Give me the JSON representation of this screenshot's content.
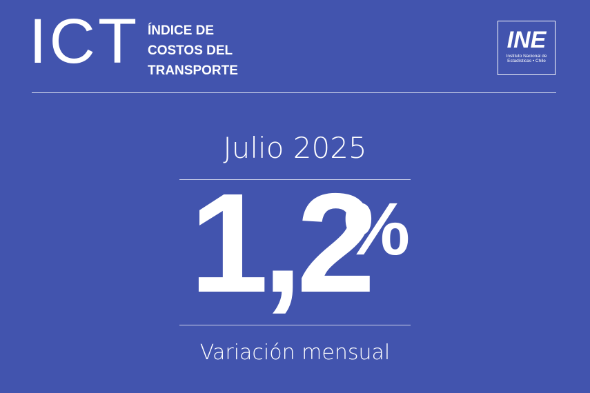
{
  "header": {
    "acronym": "ICT",
    "title": [
      "ÍNDICE DE",
      "COSTOS DEL",
      "TRANSPORTE"
    ]
  },
  "logo": {
    "text": "INE",
    "subtitle": [
      "Instituto Nacional de",
      "Estadísticas • Chile"
    ]
  },
  "main": {
    "period": "Julio 2025",
    "value": "1,2",
    "unit": "%",
    "label": "Variación mensual"
  }
}
